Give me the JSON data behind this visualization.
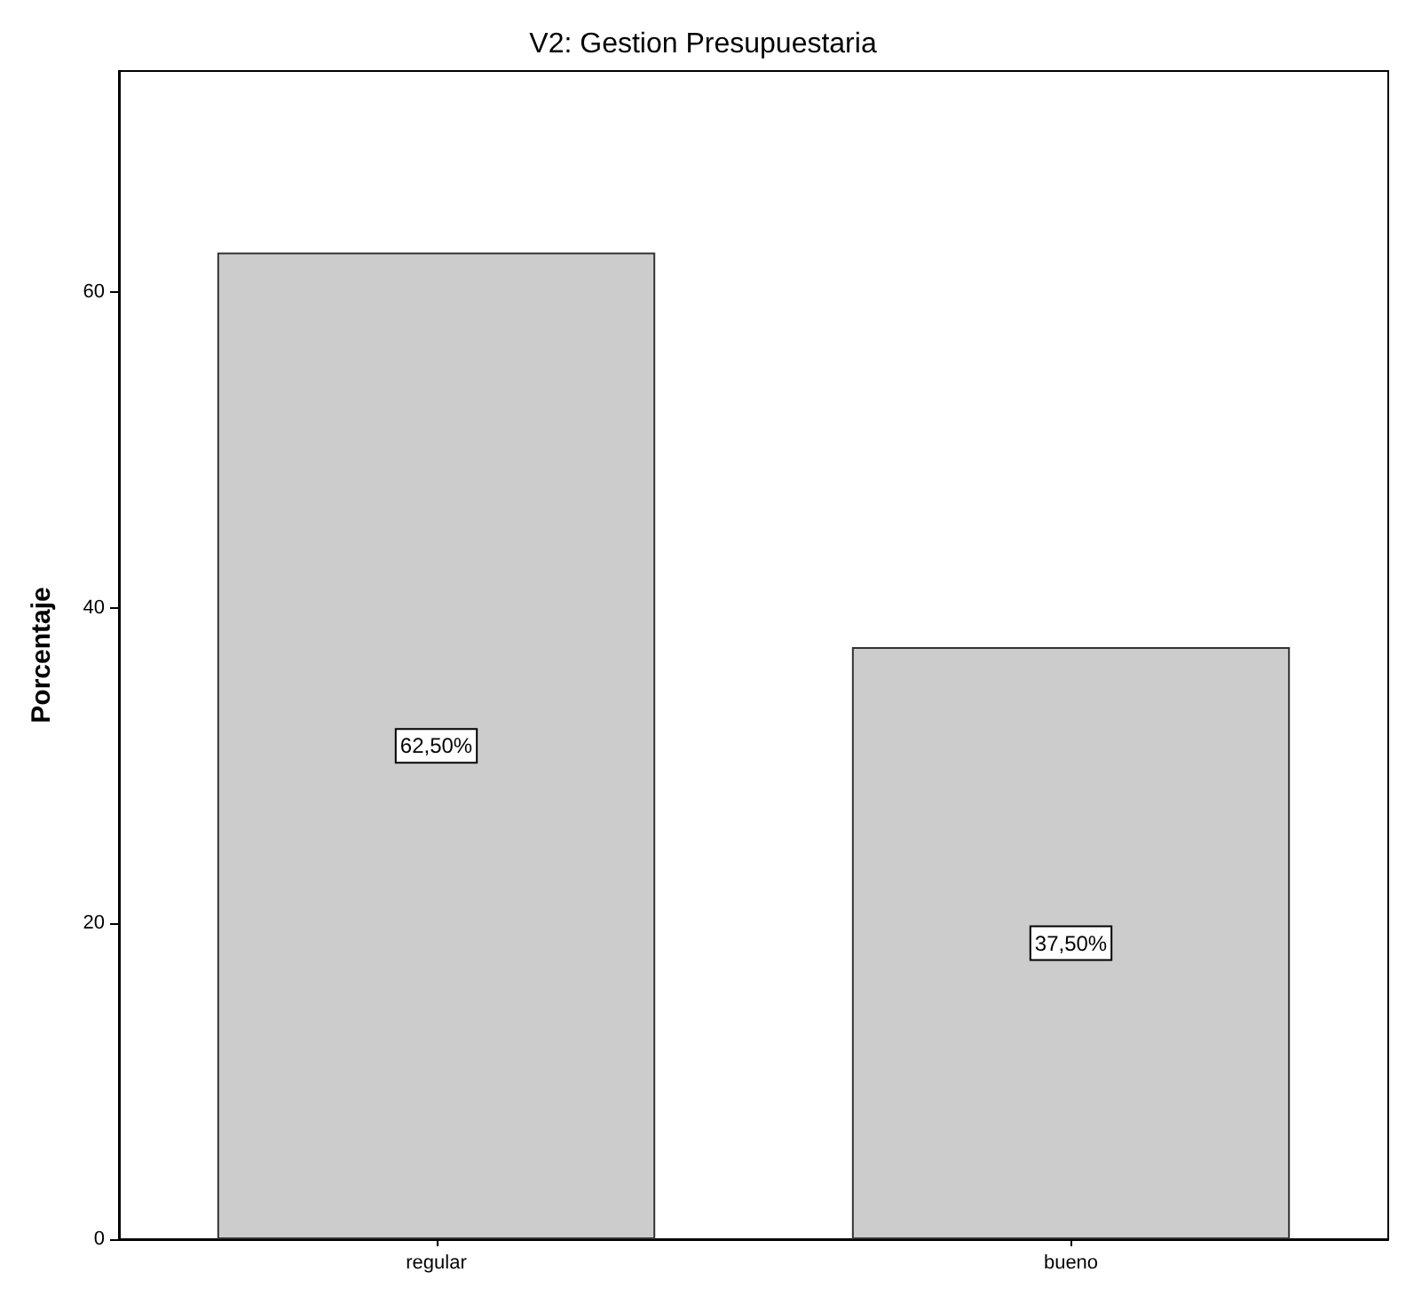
{
  "chart_data": {
    "type": "bar",
    "title": "V2: Gestion Presupuestaria",
    "ylabel": "Porcentaje",
    "categories": [
      "regular",
      "bueno"
    ],
    "values": [
      62.5,
      37.5
    ],
    "value_labels": [
      "62,50%",
      "37,50%"
    ],
    "color": "#cccccc",
    "ylim": [
      0,
      74
    ],
    "yticks": [
      0,
      20,
      40,
      60
    ],
    "grid": false
  }
}
